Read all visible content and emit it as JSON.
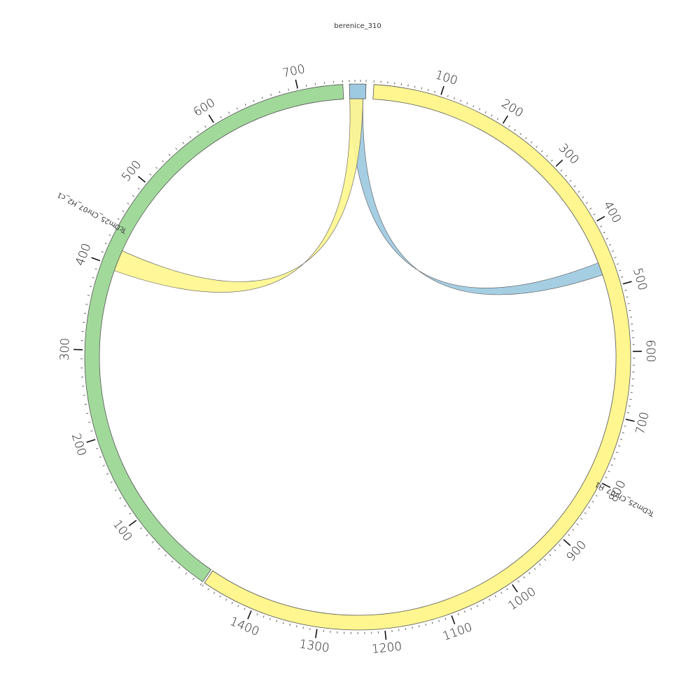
{
  "diagram": {
    "type": "chord",
    "segments": [
      {
        "name": "berenice_310",
        "length": 30,
        "color": "#9ecae1",
        "ticks": {
          "minor_step": 10,
          "major_step": 100,
          "labels": []
        }
      },
      {
        "name": "TcDm25_Chr07_H1",
        "length": 1480,
        "color": "#fff68f",
        "ticks": {
          "minor_step": 10,
          "major_step": 100,
          "labels": [
            "100",
            "200",
            "300",
            "400",
            "500",
            "600",
            "700",
            "800",
            "900",
            "1000",
            "1100",
            "1200",
            "1300",
            "1400"
          ]
        }
      },
      {
        "name": "TcDm25_Chr07_H2_c1",
        "length": 750,
        "color": "#a1d99b",
        "ticks": {
          "minor_step": 10,
          "major_step": 100,
          "labels": [
            "100",
            "200",
            "300",
            "400",
            "500",
            "600",
            "700"
          ]
        }
      }
    ],
    "links": [
      {
        "color": "#9ecae1",
        "from": {
          "segment": "berenice_310",
          "start": 0,
          "end": 25
        },
        "to": {
          "segment": "TcDm25_Chr07_H1",
          "start": 458,
          "end": 478
        }
      },
      {
        "color": "#fff68f",
        "from": {
          "segment": "berenice_310",
          "start": 0,
          "end": 25
        },
        "to": {
          "segment": "TcDm25_Chr07_H2_c1",
          "start": 395,
          "end": 420
        }
      }
    ],
    "overlap_color": "#dde589"
  }
}
